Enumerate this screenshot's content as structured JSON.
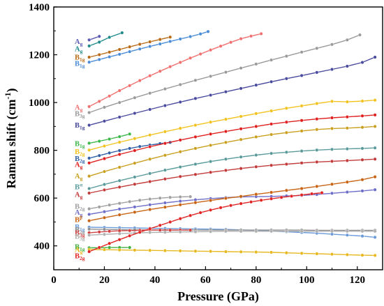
{
  "chart_data": {
    "type": "scatter",
    "title": "",
    "xlabel": "Pressure (GPa)",
    "ylabel_main": "Raman shift (cm",
    "ylabel_sup": "-1",
    "ylabel_close": ")",
    "xlim": [
      0,
      130
    ],
    "ylim": [
      300,
      1400
    ],
    "xticks": [
      "0",
      "20",
      "40",
      "60",
      "80",
      "100",
      "120"
    ],
    "yticks": [
      "400",
      "600",
      "800",
      "1000",
      "1200",
      "1400"
    ],
    "grid": false,
    "legend": "none",
    "series": [
      {
        "name": "A",
        "sub": "g",
        "color": "#5B5BB5",
        "label_y": 1255,
        "x": [
          14,
          18
        ],
        "y": [
          1262,
          1277
        ]
      },
      {
        "name": "A",
        "sub": "g",
        "color": "#1E8A8A",
        "label_y": 1225,
        "x": [
          14,
          18,
          22,
          27
        ],
        "y": [
          1237,
          1253,
          1273,
          1292
        ]
      },
      {
        "name": "B",
        "sub": "1g",
        "color": "#B86A14",
        "label_y": 1190,
        "x": [
          14,
          18,
          22,
          26,
          30,
          34,
          38,
          42,
          46
        ],
        "y": [
          1190,
          1200,
          1211,
          1222,
          1233,
          1244,
          1254,
          1264,
          1274
        ]
      },
      {
        "name": "B",
        "sub": "1g",
        "color": "#4A8CD6",
        "label_y": 1163,
        "x": [
          14,
          18,
          22,
          26,
          30,
          34,
          38,
          42,
          46,
          50,
          54,
          58,
          61
        ],
        "y": [
          1169,
          1180,
          1191,
          1202,
          1213,
          1224,
          1235,
          1245,
          1256,
          1266,
          1276,
          1287,
          1297
        ]
      },
      {
        "name": "A",
        "sub": "g",
        "color": "#F07070",
        "label_y": 980,
        "x": [
          14,
          18,
          22,
          26,
          30,
          34,
          38,
          42,
          46,
          50,
          54,
          58,
          62,
          66,
          70,
          74,
          78,
          82
        ],
        "y": [
          983,
          1005,
          1027,
          1050,
          1071,
          1092,
          1112,
          1131,
          1150,
          1168,
          1186,
          1203,
          1220,
          1236,
          1252,
          1267,
          1278,
          1288
        ]
      },
      {
        "name": "B",
        "sub": "3g",
        "color": "#9A9A9A",
        "label_y": 953,
        "x": [
          14,
          20,
          26,
          32,
          38,
          44,
          50,
          56,
          62,
          68,
          74,
          80,
          86,
          92,
          98,
          104,
          110,
          116,
          121
        ],
        "y": [
          958,
          980,
          1000,
          1020,
          1039,
          1057,
          1075,
          1093,
          1110,
          1127,
          1144,
          1161,
          1178,
          1194,
          1211,
          1227,
          1243,
          1262,
          1283
        ]
      },
      {
        "name": "B",
        "sub": "1g",
        "color": "#4A4A9E",
        "label_y": 905,
        "x": [
          14,
          20,
          26,
          32,
          38,
          44,
          50,
          56,
          62,
          68,
          74,
          80,
          86,
          92,
          98,
          104,
          110,
          116,
          122,
          127
        ],
        "y": [
          905,
          922,
          939,
          955,
          971,
          987,
          1002,
          1017,
          1031,
          1045,
          1059,
          1073,
          1087,
          1100,
          1113,
          1126,
          1139,
          1152,
          1168,
          1190
        ]
      },
      {
        "name": "B",
        "sub": "1g",
        "color": "#3DB84A",
        "label_y": 828,
        "x": [
          14,
          18,
          22,
          26,
          30
        ],
        "y": [
          830,
          838,
          847,
          857,
          868
        ]
      },
      {
        "name": "B",
        "sub": "2g",
        "color": "#F2C320",
        "label_y": 795,
        "x": [
          14,
          20,
          26,
          32,
          38,
          44,
          50,
          56,
          62,
          68,
          74,
          80,
          86,
          92,
          98,
          104,
          110,
          116,
          122,
          127
        ],
        "y": [
          801,
          818,
          834,
          849,
          864,
          878,
          892,
          905,
          918,
          930,
          942,
          954,
          965,
          976,
          986,
          996,
          1005,
          1003,
          1006,
          1010
        ]
      },
      {
        "name": "B",
        "sub": "2g",
        "color": "#2F5FA6",
        "label_y": 765,
        "x": [
          14,
          18,
          22,
          26,
          30,
          34,
          38,
          42,
          46
        ],
        "y": [
          767,
          778,
          789,
          799,
          808,
          816,
          822,
          828,
          833
        ]
      },
      {
        "name": "A",
        "sub": "g",
        "color": "#E02020",
        "label_y": 740,
        "x": [
          14,
          20,
          26,
          32,
          38,
          44,
          50,
          56,
          62,
          68,
          74,
          80,
          86,
          92,
          98,
          104,
          110,
          116,
          122,
          127
        ],
        "y": [
          747,
          765,
          783,
          799,
          815,
          829,
          843,
          856,
          868,
          879,
          890,
          900,
          910,
          918,
          925,
          931,
          936,
          940,
          944,
          948
        ]
      },
      {
        "name": "A",
        "sub": "g",
        "color": "#C9A020",
        "label_y": 693,
        "x": [
          14,
          20,
          26,
          32,
          38,
          44,
          50,
          56,
          62,
          68,
          74,
          80,
          86,
          92,
          98,
          104,
          110,
          116,
          122,
          127
        ],
        "y": [
          692,
          711,
          729,
          746,
          763,
          779,
          794,
          808,
          821,
          833,
          845,
          856,
          866,
          874,
          881,
          887,
          891,
          893,
          896,
          900
        ]
      },
      {
        "name": "B",
        "sup": "α",
        "color": "#5A9A9A",
        "label_y": 647,
        "x": [
          14,
          20,
          26,
          32,
          38,
          44,
          50,
          56,
          62,
          68,
          74,
          80,
          86,
          92,
          98,
          104,
          110,
          116,
          122,
          127
        ],
        "y": [
          640,
          657,
          673,
          688,
          703,
          717,
          730,
          742,
          753,
          763,
          772,
          780,
          787,
          792,
          797,
          801,
          804,
          806,
          808,
          810
        ]
      },
      {
        "name": "A",
        "sub": "g",
        "color": "#C23A3A",
        "label_y": 615,
        "x": [
          14,
          20,
          26,
          32,
          38,
          44,
          50,
          56,
          62,
          68,
          74,
          80,
          86,
          92,
          98,
          104,
          110,
          116,
          122,
          127
        ],
        "y": [
          621,
          634,
          646,
          658,
          669,
          680,
          690,
          699,
          708,
          716,
          724,
          731,
          737,
          742,
          747,
          751,
          754,
          757,
          760,
          763
        ]
      },
      {
        "name": "B",
        "sub": "2g",
        "color": "#A0A0A0",
        "label_y": 565,
        "x": [
          14,
          18,
          22,
          26,
          30,
          34,
          38,
          42,
          46,
          50,
          54
        ],
        "y": [
          555,
          563,
          571,
          578,
          585,
          591,
          596,
          600,
          603,
          605,
          606
        ]
      },
      {
        "name": "A",
        "sub": "g",
        "color": "#6E6EC8",
        "label_y": 540,
        "x": [
          14,
          20,
          26,
          32,
          38,
          44,
          50,
          56,
          62,
          68,
          74,
          80,
          86,
          92,
          98,
          104,
          110,
          116,
          122,
          127
        ],
        "y": [
          532,
          543,
          554,
          563,
          572,
          580,
          587,
          593,
          598,
          602,
          605,
          606,
          607,
          609,
          611,
          615,
          620,
          625,
          630,
          635
        ]
      },
      {
        "name": "B",
        "sup": "β",
        "color": "#C86414",
        "label_y": 510,
        "x": [
          14,
          20,
          26,
          32,
          38,
          44,
          50,
          56,
          62,
          68,
          74,
          80,
          86,
          92,
          98,
          104,
          110,
          116,
          122,
          127
        ],
        "y": [
          505,
          518,
          530,
          541,
          552,
          562,
          572,
          581,
          590,
          599,
          607,
          616,
          624,
          632,
          640,
          649,
          658,
          667,
          677,
          689
        ]
      },
      {
        "name": "B",
        "sub": "1g",
        "color": "#6A9ADA",
        "label_y": 480,
        "x": [
          14,
          20,
          26,
          32,
          38,
          44,
          50,
          56,
          62,
          68,
          74,
          80,
          86,
          92,
          98,
          104,
          110,
          116,
          122,
          127
        ],
        "y": [
          478,
          477,
          476,
          475,
          474,
          473,
          472,
          471,
          470,
          469,
          467,
          465,
          462,
          459,
          456,
          453,
          449,
          445,
          441,
          436
        ]
      },
      {
        "name": "B",
        "sub": "2g",
        "color": "#909090",
        "label_y": 468,
        "x": [
          14,
          20,
          26,
          32,
          38,
          44,
          50,
          56,
          62,
          68,
          74,
          80,
          86,
          92,
          98,
          104,
          110,
          116,
          122,
          127
        ],
        "y": [
          470,
          469,
          468,
          467,
          467,
          466,
          466,
          466,
          466,
          466,
          466,
          466,
          466,
          466,
          466,
          465,
          465,
          465,
          465,
          465
        ]
      },
      {
        "name": "B",
        "sub": "3g",
        "color": "#D04040",
        "label_y": 455,
        "x": [
          14,
          18,
          22,
          26,
          30,
          34,
          38,
          42,
          46,
          50,
          54
        ],
        "y": [
          455,
          458,
          461,
          463,
          464,
          465,
          466,
          466,
          466,
          466,
          466
        ]
      },
      {
        "name": "B",
        "sub": "3g",
        "color": "#B0B0B0",
        "label_y": 440,
        "x": [
          14,
          20,
          26,
          32,
          38,
          44,
          50,
          56,
          62,
          68,
          74,
          80,
          86,
          92,
          98,
          104,
          110,
          116,
          122,
          127
        ],
        "y": [
          445,
          448,
          451,
          454,
          456,
          457,
          458,
          459,
          460,
          461,
          461,
          461,
          461,
          461,
          461,
          461,
          461,
          461,
          461,
          461
        ]
      },
      {
        "name": "B",
        "sub": "1g",
        "color": "#40B040",
        "label_y": 397,
        "x": [
          14,
          18,
          22,
          26,
          30
        ],
        "y": [
          392,
          392,
          393,
          393,
          393
        ]
      },
      {
        "name": "A",
        "sub": "g",
        "color": "#E8B820",
        "label_y": 385,
        "x": [
          14,
          20,
          26,
          32,
          38,
          44,
          50,
          56,
          62,
          68,
          74,
          80,
          86,
          92,
          98,
          104,
          110,
          116,
          122,
          127
        ],
        "y": [
          385,
          384,
          383,
          382,
          381,
          380,
          379,
          378,
          377,
          376,
          375,
          374,
          373,
          371,
          369,
          367,
          365,
          363,
          361,
          360
        ]
      },
      {
        "name": "B",
        "sub": "2g",
        "color": "#E02525",
        "label_y": 358,
        "x": [
          14,
          18,
          22,
          26,
          30,
          34,
          38,
          42,
          46,
          50,
          54,
          58,
          62,
          66,
          70,
          74,
          78,
          82,
          86,
          90,
          94,
          98,
          102,
          106
        ],
        "y": [
          376,
          393,
          410,
          426,
          442,
          457,
          472,
          486,
          500,
          514,
          527,
          539,
          550,
          560,
          569,
          577,
          584,
          591,
          597,
          603,
          608,
          613,
          618,
          622
        ]
      }
    ]
  }
}
